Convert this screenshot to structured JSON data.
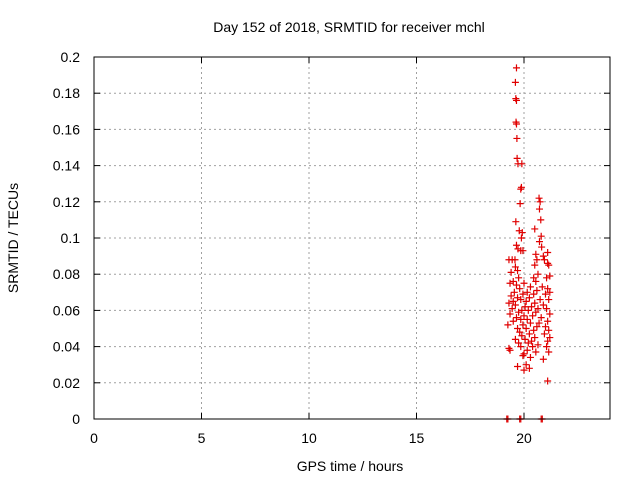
{
  "chart_data": {
    "type": "scatter",
    "title": "Day 152 of 2018, SRMTID for receiver mchl",
    "xlabel": "GPS time / hours",
    "ylabel": "SRMTID / TECUs",
    "xlim": [
      0,
      24
    ],
    "ylim": [
      0,
      0.2
    ],
    "x_ticks": [
      0,
      5,
      10,
      15,
      20
    ],
    "x_tick_labels": [
      "0",
      "5",
      "10",
      "15",
      "20"
    ],
    "y_ticks": [
      0,
      0.02,
      0.04,
      0.06,
      0.08,
      0.1,
      0.12,
      0.14,
      0.16,
      0.18,
      0.2
    ],
    "y_tick_labels": [
      "0",
      "0.02",
      "0.04",
      "0.06",
      "0.08",
      "0.1",
      "0.12",
      "0.14",
      "0.16",
      "0.18",
      "0.2"
    ],
    "grid": true,
    "legend": "none",
    "marker": "+",
    "color": "#e00000",
    "series": [
      {
        "name": "SRMTID",
        "points": [
          [
            19.2,
            0
          ],
          [
            19.25,
            0
          ],
          [
            19.8,
            0
          ],
          [
            19.85,
            0
          ],
          [
            20.8,
            0
          ],
          [
            20.85,
            0
          ],
          [
            19.65,
            0.194
          ],
          [
            19.6,
            0.186
          ],
          [
            19.62,
            0.177
          ],
          [
            19.65,
            0.176
          ],
          [
            19.63,
            0.164
          ],
          [
            19.65,
            0.163
          ],
          [
            19.67,
            0.155
          ],
          [
            19.68,
            0.144
          ],
          [
            19.72,
            0.141
          ],
          [
            19.9,
            0.141
          ],
          [
            19.88,
            0.128
          ],
          [
            19.85,
            0.127
          ],
          [
            19.82,
            0.119
          ],
          [
            20.7,
            0.122
          ],
          [
            20.75,
            0.12
          ],
          [
            20.72,
            0.116
          ],
          [
            20.78,
            0.11
          ],
          [
            19.62,
            0.109
          ],
          [
            20.5,
            0.105
          ],
          [
            19.78,
            0.104
          ],
          [
            19.92,
            0.103
          ],
          [
            19.88,
            0.1
          ],
          [
            20.8,
            0.101
          ],
          [
            20.72,
            0.098
          ],
          [
            19.65,
            0.096
          ],
          [
            20.82,
            0.095
          ],
          [
            19.72,
            0.094
          ],
          [
            19.95,
            0.093
          ],
          [
            19.85,
            0.093
          ],
          [
            20.9,
            0.09
          ],
          [
            21.1,
            0.092
          ],
          [
            20.55,
            0.091
          ],
          [
            20.6,
            0.088
          ],
          [
            19.3,
            0.088
          ],
          [
            19.45,
            0.088
          ],
          [
            19.58,
            0.088
          ],
          [
            20.95,
            0.088
          ],
          [
            21.1,
            0.086
          ],
          [
            21.15,
            0.085
          ],
          [
            20.5,
            0.085
          ],
          [
            19.6,
            0.084
          ],
          [
            19.7,
            0.082
          ],
          [
            19.4,
            0.081
          ],
          [
            20.65,
            0.08
          ],
          [
            21.05,
            0.078
          ],
          [
            21.2,
            0.079
          ],
          [
            20.45,
            0.078
          ],
          [
            19.75,
            0.078
          ],
          [
            19.5,
            0.076
          ],
          [
            20.55,
            0.076
          ],
          [
            19.35,
            0.075
          ],
          [
            19.65,
            0.074
          ],
          [
            20.0,
            0.075
          ],
          [
            20.3,
            0.073
          ],
          [
            20.85,
            0.073
          ],
          [
            19.8,
            0.072
          ],
          [
            21.1,
            0.072
          ],
          [
            21.2,
            0.07
          ],
          [
            20.6,
            0.071
          ],
          [
            19.55,
            0.07
          ],
          [
            20.15,
            0.07
          ],
          [
            19.95,
            0.069
          ],
          [
            20.45,
            0.069
          ],
          [
            21.0,
            0.069
          ],
          [
            19.4,
            0.068
          ],
          [
            20.25,
            0.067
          ],
          [
            19.7,
            0.067
          ],
          [
            20.75,
            0.066
          ],
          [
            19.85,
            0.066
          ],
          [
            21.15,
            0.066
          ],
          [
            19.5,
            0.065
          ],
          [
            20.1,
            0.065
          ],
          [
            20.5,
            0.064
          ],
          [
            19.3,
            0.064
          ],
          [
            20.9,
            0.063
          ],
          [
            19.6,
            0.063
          ],
          [
            20.35,
            0.062
          ],
          [
            20.05,
            0.062
          ],
          [
            19.45,
            0.061
          ],
          [
            21.05,
            0.061
          ],
          [
            20.65,
            0.061
          ],
          [
            19.9,
            0.06
          ],
          [
            20.2,
            0.06
          ],
          [
            19.75,
            0.059
          ],
          [
            20.55,
            0.059
          ],
          [
            21.2,
            0.058
          ],
          [
            19.35,
            0.058
          ],
          [
            20.0,
            0.057
          ],
          [
            20.4,
            0.057
          ],
          [
            19.65,
            0.056
          ],
          [
            20.8,
            0.056
          ],
          [
            20.15,
            0.055
          ],
          [
            19.85,
            0.055
          ],
          [
            21.1,
            0.054
          ],
          [
            19.5,
            0.054
          ],
          [
            20.3,
            0.053
          ],
          [
            20.7,
            0.053
          ],
          [
            19.95,
            0.052
          ],
          [
            19.25,
            0.052
          ],
          [
            20.6,
            0.051
          ],
          [
            21.0,
            0.051
          ],
          [
            20.1,
            0.05
          ],
          [
            19.7,
            0.05
          ],
          [
            20.45,
            0.049
          ],
          [
            21.15,
            0.049
          ],
          [
            19.8,
            0.048
          ],
          [
            20.25,
            0.047
          ],
          [
            20.95,
            0.047
          ],
          [
            19.9,
            0.046
          ],
          [
            20.5,
            0.045
          ],
          [
            21.2,
            0.045
          ],
          [
            20.05,
            0.044
          ],
          [
            19.6,
            0.044
          ],
          [
            20.35,
            0.043
          ],
          [
            21.1,
            0.043
          ],
          [
            20.2,
            0.042
          ],
          [
            19.75,
            0.042
          ],
          [
            20.65,
            0.041
          ],
          [
            19.85,
            0.04
          ],
          [
            20.4,
            0.04
          ],
          [
            21.05,
            0.04
          ],
          [
            19.3,
            0.039
          ],
          [
            19.35,
            0.038
          ],
          [
            20.15,
            0.038
          ],
          [
            20.55,
            0.037
          ],
          [
            21.15,
            0.037
          ],
          [
            20.0,
            0.036
          ],
          [
            19.95,
            0.035
          ],
          [
            20.3,
            0.034
          ],
          [
            20.9,
            0.033
          ],
          [
            20.1,
            0.03
          ],
          [
            20.25,
            0.028
          ],
          [
            19.7,
            0.029
          ],
          [
            20.0,
            0.027
          ],
          [
            21.1,
            0.021
          ]
        ]
      }
    ]
  }
}
